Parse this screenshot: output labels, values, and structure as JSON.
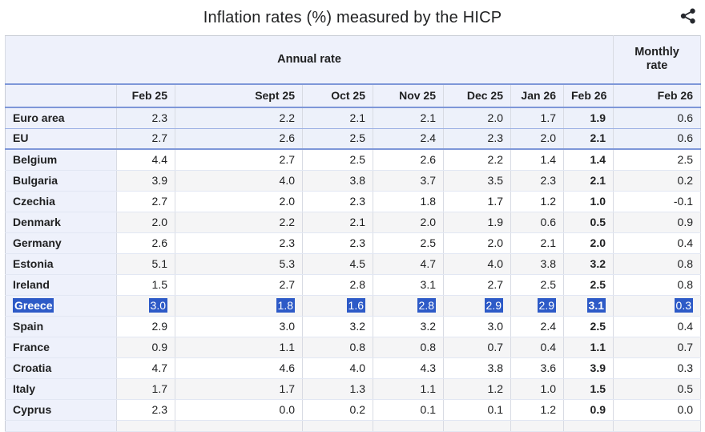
{
  "page": {
    "title": "Inflation rates (%) measured by the HICP",
    "share_button": {
      "icon": "share-icon",
      "label": "share"
    }
  },
  "colors": {
    "text": "#202122",
    "header_bg": "#eef1fb",
    "aggregate_row_bg": "#edf1fa",
    "stripe_bg": "#f5f5f6",
    "row_border": "#e2e7f3",
    "column_border": "#d8dbe3",
    "outer_border": "#c8ccd5",
    "blue_divider_strong": "#7e97d8",
    "blue_divider_light": "#9db1e4",
    "selection_bg": "#2d5ac7",
    "selection_text": "#ffffff",
    "icon_color": "#26292e"
  },
  "chart_data": {
    "type": "table",
    "title": "Inflation rates (%) measured by the HICP",
    "column_groups": [
      {
        "label": "Annual rate",
        "span": 7
      },
      {
        "label": "Monthly rate",
        "span": 1
      }
    ],
    "annual_columns": [
      "Feb 25",
      "Sept 25",
      "Oct 25",
      "Nov 25",
      "Dec 25",
      "Jan 26",
      "Feb 26"
    ],
    "monthly_column": "Feb 26",
    "bold_annual_column_index": 6,
    "rows": [
      {
        "name": "Euro area",
        "group": "aggregate",
        "selected": false,
        "values": [
          "2.3",
          "2.2",
          "2.1",
          "2.1",
          "2.0",
          "1.7",
          "1.9"
        ],
        "monthly": "0.6"
      },
      {
        "name": "EU",
        "group": "aggregate",
        "selected": false,
        "values": [
          "2.7",
          "2.6",
          "2.5",
          "2.4",
          "2.3",
          "2.0",
          "2.1"
        ],
        "monthly": "0.6"
      },
      {
        "name": "Belgium",
        "group": "country",
        "selected": false,
        "values": [
          "4.4",
          "2.7",
          "2.5",
          "2.6",
          "2.2",
          "1.4",
          "1.4"
        ],
        "monthly": "2.5"
      },
      {
        "name": "Bulgaria",
        "group": "country",
        "selected": false,
        "values": [
          "3.9",
          "4.0",
          "3.8",
          "3.7",
          "3.5",
          "2.3",
          "2.1"
        ],
        "monthly": "0.2"
      },
      {
        "name": "Czechia",
        "group": "country",
        "selected": false,
        "values": [
          "2.7",
          "2.0",
          "2.3",
          "1.8",
          "1.7",
          "1.2",
          "1.0"
        ],
        "monthly": "-0.1"
      },
      {
        "name": "Denmark",
        "group": "country",
        "selected": false,
        "values": [
          "2.0",
          "2.2",
          "2.1",
          "2.0",
          "1.9",
          "0.6",
          "0.5"
        ],
        "monthly": "0.9"
      },
      {
        "name": "Germany",
        "group": "country",
        "selected": false,
        "values": [
          "2.6",
          "2.3",
          "2.3",
          "2.5",
          "2.0",
          "2.1",
          "2.0"
        ],
        "monthly": "0.4"
      },
      {
        "name": "Estonia",
        "group": "country",
        "selected": false,
        "values": [
          "5.1",
          "5.3",
          "4.5",
          "4.7",
          "4.0",
          "3.8",
          "3.2"
        ],
        "monthly": "0.8"
      },
      {
        "name": "Ireland",
        "group": "country",
        "selected": false,
        "values": [
          "1.5",
          "2.7",
          "2.8",
          "3.1",
          "2.7",
          "2.5",
          "2.5"
        ],
        "monthly": "0.8"
      },
      {
        "name": "Greece",
        "group": "country",
        "selected": true,
        "values": [
          "3.0",
          "1.8",
          "1.6",
          "2.8",
          "2.9",
          "2.9",
          "3.1"
        ],
        "monthly": "0.3"
      },
      {
        "name": "Spain",
        "group": "country",
        "selected": false,
        "values": [
          "2.9",
          "3.0",
          "3.2",
          "3.2",
          "3.0",
          "2.4",
          "2.5"
        ],
        "monthly": "0.4"
      },
      {
        "name": "France",
        "group": "country",
        "selected": false,
        "values": [
          "0.9",
          "1.1",
          "0.8",
          "0.8",
          "0.7",
          "0.4",
          "1.1"
        ],
        "monthly": "0.7"
      },
      {
        "name": "Croatia",
        "group": "country",
        "selected": false,
        "values": [
          "4.7",
          "4.6",
          "4.0",
          "4.3",
          "3.8",
          "3.6",
          "3.9"
        ],
        "monthly": "0.3"
      },
      {
        "name": "Italy",
        "group": "country",
        "selected": false,
        "values": [
          "1.7",
          "1.7",
          "1.3",
          "1.1",
          "1.2",
          "1.0",
          "1.5"
        ],
        "monthly": "0.5"
      },
      {
        "name": "Cyprus",
        "group": "country",
        "selected": false,
        "values": [
          "2.3",
          "0.0",
          "0.2",
          "0.1",
          "0.1",
          "1.2",
          "0.9"
        ],
        "monthly": "0.0"
      }
    ]
  }
}
